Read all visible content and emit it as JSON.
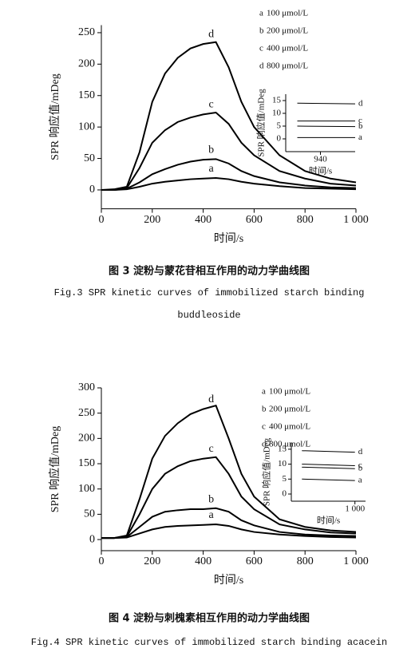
{
  "chart_data": [
    {
      "type": "line",
      "ylabel": "SPR 响应值/mDeg",
      "xlabel": "时间/s",
      "caption_zh": "图 3  淀粉与蒙花苷相互作用的动力学曲线图",
      "caption_en": [
        "Fig.3   SPR kinetic curves of immobilized starch binding",
        "buddleoside"
      ],
      "x": [
        0,
        50,
        100,
        150,
        200,
        250,
        300,
        350,
        400,
        450,
        500,
        550,
        600,
        700,
        800,
        900,
        1000
      ],
      "xlim": [
        0,
        1000
      ],
      "xticks": [
        0,
        200,
        400,
        600,
        800,
        {
          "value": 1000,
          "label": "1 000"
        }
      ],
      "ylim": [
        -30,
        262
      ],
      "yticks": [
        0,
        50,
        100,
        150,
        200,
        250
      ],
      "series": [
        {
          "label": "a",
          "name": "100 μmol/L",
          "color": "#000",
          "values": [
            0,
            0,
            1,
            5,
            10,
            13,
            15,
            17,
            18,
            19,
            17,
            13,
            10,
            6,
            3,
            2,
            1
          ]
        },
        {
          "label": "b",
          "name": "200 μmol/L",
          "color": "#000",
          "values": [
            0,
            0,
            2,
            12,
            25,
            33,
            40,
            45,
            48,
            49,
            42,
            30,
            22,
            12,
            7,
            4,
            3
          ]
        },
        {
          "label": "c",
          "name": "400 μmol/L",
          "color": "#000",
          "values": [
            0,
            0,
            3,
            35,
            75,
            95,
            108,
            115,
            120,
            123,
            105,
            75,
            55,
            30,
            18,
            10,
            7
          ]
        },
        {
          "label": "d",
          "name": "800 μmol/L",
          "color": "#000",
          "values": [
            0,
            1,
            5,
            60,
            140,
            185,
            210,
            225,
            232,
            235,
            195,
            140,
            100,
            55,
            30,
            18,
            12
          ]
        }
      ],
      "inset": {
        "xlabel": "时间/s",
        "ylabel": "SPR 响应值/mDeg",
        "x": [
          900,
          1000
        ],
        "xlim": [
          880,
          1000
        ],
        "xticks": [
          940
        ],
        "ylim": [
          -5,
          17.5
        ],
        "yticks": [
          0,
          5,
          10,
          15
        ],
        "series": [
          {
            "label": "a",
            "values": [
              0.5,
              0.5
            ]
          },
          {
            "label": "b",
            "values": [
              5,
              4.8
            ]
          },
          {
            "label": "c",
            "values": [
              7,
              7
            ]
          },
          {
            "label": "d",
            "values": [
              14,
              13.7
            ]
          }
        ]
      }
    },
    {
      "type": "line",
      "ylabel": "SPR 响应值/mDeg",
      "xlabel": "时间/s",
      "caption_zh": "图 4  淀粉与刺槐素相互作用的动力学曲线图",
      "caption_en": [
        "Fig.4   SPR kinetic curves of immobilized starch binding acacein"
      ],
      "x": [
        0,
        50,
        100,
        150,
        200,
        250,
        300,
        350,
        400,
        450,
        500,
        550,
        600,
        700,
        800,
        900,
        1000
      ],
      "xlim": [
        0,
        1000
      ],
      "xticks": [
        0,
        200,
        400,
        600,
        800,
        {
          "value": 1000,
          "label": "1 000"
        }
      ],
      "ylim": [
        -22,
        300
      ],
      "yticks": [
        0,
        50,
        100,
        150,
        200,
        250,
        300
      ],
      "series": [
        {
          "label": "a",
          "name": "100 μmol/L",
          "color": "#000",
          "values": [
            3,
            3,
            4,
            12,
            20,
            25,
            27,
            28,
            29,
            30,
            27,
            20,
            15,
            10,
            7,
            5,
            4
          ]
        },
        {
          "label": "b",
          "name": "200 μmol/L",
          "color": "#000",
          "values": [
            3,
            3,
            5,
            25,
            45,
            55,
            58,
            60,
            60,
            62,
            55,
            38,
            28,
            15,
            10,
            8,
            7
          ]
        },
        {
          "label": "c",
          "name": "400 μmol/L",
          "color": "#000",
          "values": [
            3,
            3,
            6,
            50,
            100,
            130,
            145,
            155,
            160,
            163,
            130,
            85,
            60,
            30,
            20,
            14,
            12
          ]
        },
        {
          "label": "d",
          "name": "800 μmol/L",
          "color": "#000",
          "values": [
            3,
            3,
            8,
            80,
            160,
            205,
            230,
            248,
            258,
            265,
            200,
            130,
            85,
            40,
            25,
            18,
            15
          ]
        }
      ],
      "inset": {
        "xlabel": "时间/s",
        "ylabel": "SPR 响应值/mDeg",
        "x": [
          900,
          1000
        ],
        "xlim": [
          880,
          1020
        ],
        "xticks": [
          {
            "value": 1000,
            "label": "1 000"
          }
        ],
        "ylim": [
          -2.4,
          17.1
        ],
        "yticks": [
          0,
          5,
          10,
          15
        ],
        "series": [
          {
            "label": "a",
            "values": [
              5,
              4.5
            ]
          },
          {
            "label": "b",
            "values": [
              9,
              8.5
            ]
          },
          {
            "label": "c",
            "values": [
              10,
              9.5
            ]
          },
          {
            "label": "d",
            "values": [
              14.5,
              14
            ]
          }
        ]
      }
    }
  ]
}
